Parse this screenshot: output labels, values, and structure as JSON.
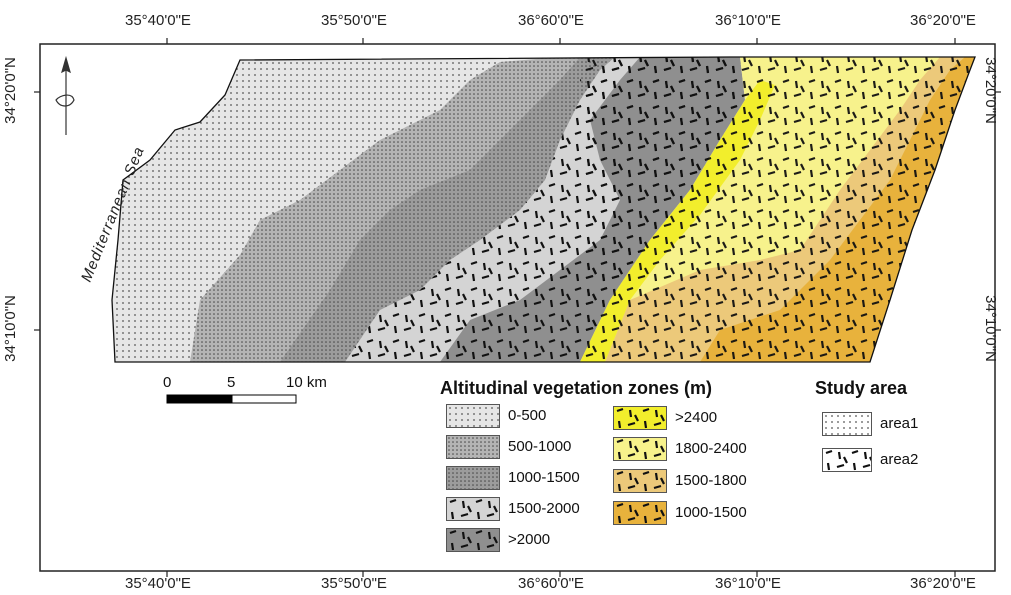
{
  "map": {
    "top_ticks": [
      "35°40'0\"E",
      "35°50'0\"E",
      "36°60'0\"E",
      "36°10'0\"E",
      "36°20'0\"E"
    ],
    "bottom_ticks": [
      "35°40'0\"E",
      "35°50'0\"E",
      "36°60'0\"E",
      "36°10'0\"E",
      "36°20'0\"E"
    ],
    "left_ticks": [
      "34°20'0\"N",
      "34°10'0\"N"
    ],
    "right_ticks": [
      "34°20'0\"N",
      "34°10'0\"N"
    ],
    "sea_label": "Mediterranean Sea",
    "north_arrow": "north-arrow-icon"
  },
  "scale_bar": {
    "labels": [
      "0",
      "5",
      "10 km"
    ]
  },
  "legend": {
    "title": "Altitudinal vegetation zones (m)",
    "area1_items": [
      "0-500",
      "500-1000",
      "1000-1500",
      "1500-2000",
      ">2000"
    ],
    "area2_items": [
      ">2400",
      "1800-2400",
      "1500-1800",
      "1000-1500"
    ]
  },
  "study_area": {
    "title": "Study area",
    "items": [
      "area1",
      "area2"
    ]
  },
  "colors": {
    "z0_500": "#e6e6e6",
    "z500_1000": "#b4b4b4",
    "z1000_1500": "#9c9c9c",
    "z1500_2000": "#d4d4d4",
    "z2000": "#8f8f8f",
    "z2400": "#f2ee2c",
    "z1800_2400": "#f7f28c",
    "z1500_1800": "#ecc97a",
    "z1000_1500b": "#e8b23c"
  }
}
